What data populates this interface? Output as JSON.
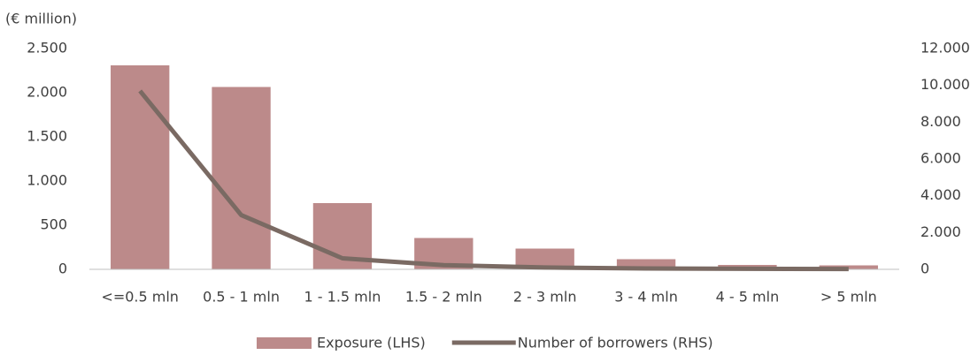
{
  "chart_data": {
    "type": "bar_line",
    "y_label": "(€ million)",
    "categories": [
      "<=0.5 mln",
      "0.5 - 1 mln",
      "1 - 1.5 mln",
      "1.5 - 2 mln",
      "2 - 3 mln",
      "3 - 4 mln",
      "4 - 5 mln",
      "> 5 mln"
    ],
    "series": [
      {
        "name": "Exposure (LHS)",
        "type": "bar",
        "color": "#bc8a8a",
        "values": [
          2310,
          2065,
          750,
          355,
          235,
          115,
          50,
          45
        ]
      },
      {
        "name": "Number of borrowers (RHS)",
        "type": "line",
        "axis": "y2",
        "color": "#7a6a63",
        "values": [
          9700,
          2950,
          600,
          230,
          100,
          50,
          30,
          20
        ]
      }
    ],
    "ylim": [
      0,
      2500
    ],
    "yticks": [
      0,
      {
        "value": 500,
        "label": "500"
      },
      {
        "value": 1000,
        "label": "1.000"
      },
      {
        "value": 1500,
        "label": "1.500"
      },
      {
        "value": 2000,
        "label": "2.000"
      },
      {
        "value": 2500,
        "label": "2.500"
      }
    ],
    "y2lim": [
      0,
      12000
    ],
    "y2ticks": [
      0,
      {
        "value": 2000,
        "label": "2.000"
      },
      {
        "value": 4000,
        "label": "4.000"
      },
      {
        "value": 6000,
        "label": "6.000"
      },
      {
        "value": 8000,
        "label": "8.000"
      },
      {
        "value": 10000,
        "label": "10.000"
      },
      {
        "value": 12000,
        "label": "12.000"
      }
    ],
    "legend": "bottom"
  }
}
